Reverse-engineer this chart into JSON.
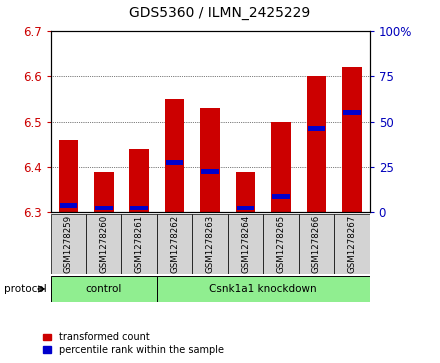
{
  "title": "GDS5360 / ILMN_2425229",
  "samples": [
    "GSM1278259",
    "GSM1278260",
    "GSM1278261",
    "GSM1278262",
    "GSM1278263",
    "GSM1278264",
    "GSM1278265",
    "GSM1278266",
    "GSM1278267"
  ],
  "red_values": [
    6.46,
    6.39,
    6.44,
    6.55,
    6.53,
    6.39,
    6.5,
    6.6,
    6.62
  ],
  "blue_values": [
    6.315,
    6.31,
    6.31,
    6.41,
    6.39,
    6.31,
    6.335,
    6.485,
    6.52
  ],
  "ymin": 6.3,
  "ymax": 6.7,
  "y_ticks_left": [
    6.3,
    6.4,
    6.5,
    6.6,
    6.7
  ],
  "y_ticks_right_vals": [
    0,
    25,
    50,
    75,
    100
  ],
  "y_ticks_right_labels": [
    "0",
    "25",
    "50",
    "75",
    "100%"
  ],
  "bar_bottom": 6.3,
  "bar_width": 0.55,
  "protocol_groups": [
    {
      "label": "control",
      "start": 0,
      "end": 3
    },
    {
      "label": "Csnk1a1 knockdown",
      "start": 3,
      "end": 9
    }
  ],
  "protocol_label": "protocol",
  "group_color": "#90EE90",
  "bar_color_red": "#CC0000",
  "bar_color_blue": "#0000CC",
  "tick_label_color_left": "#CC0000",
  "tick_label_color_right": "#0000BB",
  "legend_items": [
    {
      "label": "transformed count",
      "color": "#CC0000"
    },
    {
      "label": "percentile rank within the sample",
      "color": "#0000CC"
    }
  ],
  "sample_bg_color": "#d3d3d3"
}
